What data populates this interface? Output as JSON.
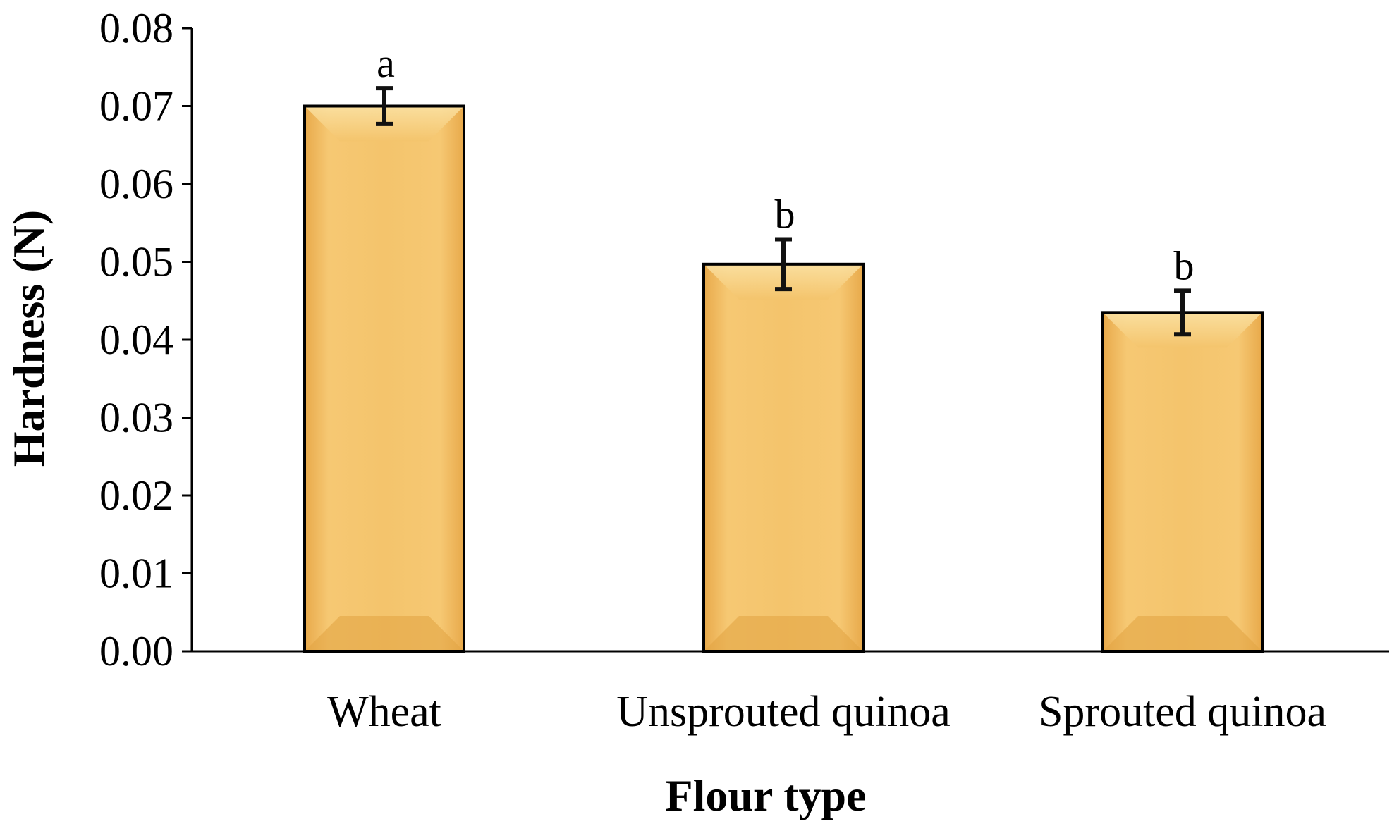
{
  "chart_data": {
    "type": "bar",
    "categories": [
      "Wheat",
      "Unsprouted quinoa",
      "Sprouted quinoa"
    ],
    "values": [
      0.07,
      0.0497,
      0.0435
    ],
    "error": [
      0.0023,
      0.0032,
      0.0028
    ],
    "significance": [
      "a",
      "b",
      "b"
    ],
    "xlabel": "Flour type",
    "ylabel": "Hardness (N)",
    "ylim": [
      0,
      0.08
    ],
    "yticks": [
      "0.00",
      "0.01",
      "0.02",
      "0.03",
      "0.04",
      "0.05",
      "0.06",
      "0.07",
      "0.08"
    ],
    "grid": false,
    "legend": "none",
    "bar_color": "#f2c066",
    "bar_edge_color": "#000000"
  }
}
